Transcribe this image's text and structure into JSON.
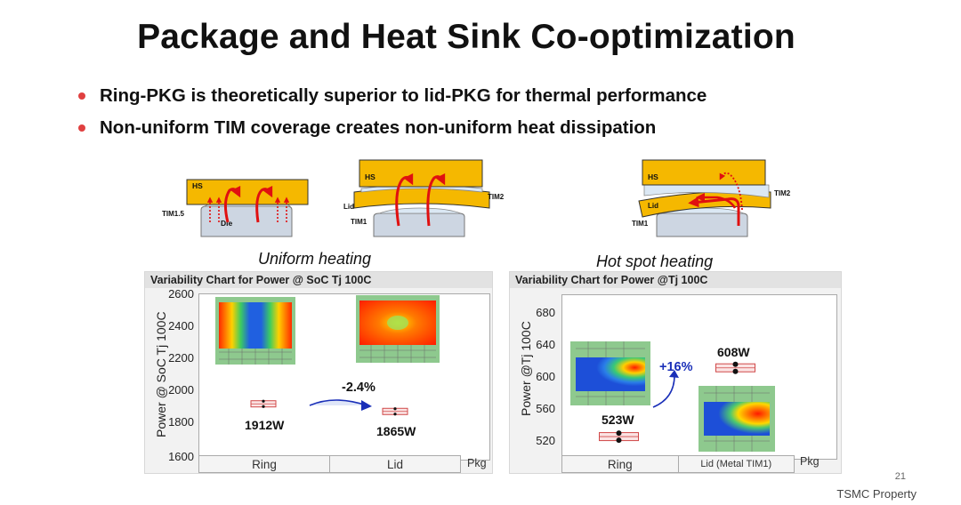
{
  "slide": {
    "title": "Package and Heat Sink Co-optimization",
    "bullets": [
      "Ring-PKG is theoretically superior to lid-PKG for thermal performance",
      "Non-uniform TIM coverage creates non-uniform heat dissipation"
    ],
    "page_number": "21",
    "footer": "TSMC Property"
  },
  "diagrams": {
    "ring": {
      "hs": "HS",
      "tim": "TIM1.5",
      "die": "Die"
    },
    "lid": {
      "hs": "HS",
      "lid": "Lid",
      "tim2": "TIM2",
      "tim1": "TIM1"
    },
    "hotspot": {
      "hs": "HS",
      "lid": "Lid",
      "tim2": "TIM2",
      "tim1": "TIM1"
    }
  },
  "captions": {
    "uniform": "Uniform heating",
    "hotspot": "Hot spot heating"
  },
  "chart_left": {
    "header": "Variability Chart for Power @ SoC Tj 100C",
    "ylabel": "Power @ SoC Tj 100C",
    "ticks": [
      "2600",
      "2400",
      "2200",
      "2000",
      "1800",
      "1600"
    ],
    "categories": [
      "Ring",
      "Lid"
    ],
    "pkg_label": "Pkg",
    "value_labels": [
      "1912W",
      "1865W"
    ],
    "delta": "-2.4%"
  },
  "chart_right": {
    "header": "Variability Chart for Power @Tj 100C",
    "ylabel": "Power @Tj 100C",
    "ticks": [
      "680",
      "640",
      "600",
      "560",
      "520"
    ],
    "categories": [
      "Ring",
      "Lid (Metal TIM1)"
    ],
    "pkg_label": "Pkg",
    "value_labels": [
      "523W",
      "608W"
    ],
    "delta": "+16%"
  },
  "chart_data": [
    {
      "type": "scatter",
      "header": "Variability Chart for Power @ SoC Tj 100C",
      "ylabel": "Power @ SoC Tj 100C",
      "xlabel": "Pkg",
      "categories": [
        "Ring",
        "Lid"
      ],
      "ylim": [
        1600,
        2600
      ],
      "series": [
        {
          "values": [
            1912,
            1865
          ]
        }
      ],
      "annotations": [
        "1912W",
        "1865W",
        "-2.4%"
      ]
    },
    {
      "type": "scatter",
      "header": "Variability Chart for Power @Tj 100C",
      "ylabel": "Power @Tj 100C",
      "xlabel": "Pkg",
      "categories": [
        "Ring",
        "Lid (Metal TIM1)"
      ],
      "ylim": [
        500,
        700
      ],
      "series": [
        {
          "values": [
            523,
            608
          ]
        }
      ],
      "annotations": [
        "523W",
        "608W",
        "+16%"
      ]
    }
  ],
  "colors": {
    "hs": "#f5b800",
    "arrow": "#e01010",
    "bullet": "#e04040",
    "delta_left": "#111111",
    "delta_right": "#1a2fb8",
    "die": "#cdd6e2"
  }
}
